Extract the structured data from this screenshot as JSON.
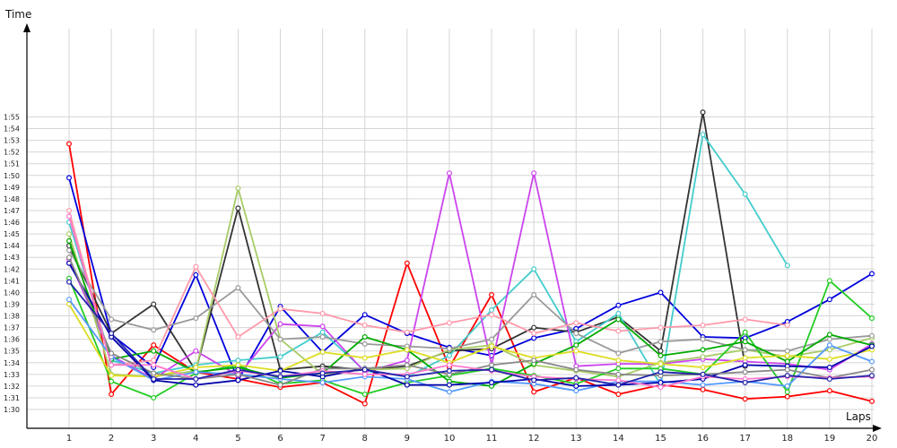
{
  "chart_data": {
    "type": "line",
    "ylabel": "Time",
    "xlabel": "Laps",
    "x": [
      1,
      2,
      3,
      4,
      5,
      6,
      7,
      8,
      9,
      10,
      11,
      12,
      13,
      14,
      15,
      16,
      17,
      18,
      19,
      20
    ],
    "y_ticks": [
      "1:30",
      "1:31",
      "1:32",
      "1:33",
      "1:34",
      "1:35",
      "1:36",
      "1:37",
      "1:38",
      "1:39",
      "1:40",
      "1:41",
      "1:42",
      "1:43",
      "1:44",
      "1:45",
      "1:46",
      "1:47",
      "1:48",
      "1:49",
      "1:50",
      "1:51",
      "1:52",
      "1:53",
      "1:54",
      "1:55"
    ],
    "ylim_seconds": [
      89,
      118
    ],
    "grid": true,
    "legend": "none",
    "series": [
      {
        "color": "#ff0000",
        "values": [
          112.7,
          91.3,
          95.5,
          93.2,
          92.6,
          91.9,
          92.3,
          90.5,
          102.5,
          93.6,
          99.8,
          91.5,
          92.7,
          91.3,
          92.1,
          91.7,
          90.9,
          91.1,
          91.6,
          90.7
        ]
      },
      {
        "color": "#0000dd",
        "values": [
          109.8,
          96.4,
          93.6,
          101.5,
          92.5,
          98.8,
          94.9,
          98.1,
          96.5,
          95.3,
          94.6,
          96.1,
          96.9,
          98.9,
          100.0,
          96.2,
          96.1,
          97.5,
          99.4,
          101.6
        ]
      },
      {
        "color": "#333333",
        "values": [
          104.0,
          96.5,
          99.0,
          93.3,
          107.2,
          93.4,
          93.7,
          93.4,
          93.7,
          95.0,
          95.2,
          97.0,
          96.6,
          97.9,
          95.0,
          115.4,
          93.7,
          null,
          null,
          null
        ]
      },
      {
        "color": "#44cccc",
        "values": [
          106.0,
          94.2,
          93.1,
          93.8,
          94.2,
          94.5,
          96.6,
          93.3,
          92.8,
          94.6,
          98.5,
          102.0,
          95.8,
          98.2,
          92.1,
          113.5,
          108.4,
          102.3,
          null,
          null
        ]
      },
      {
        "color": "#cc44ee",
        "values": [
          102.8,
          94.6,
          92.6,
          95.0,
          92.9,
          97.3,
          97.1,
          93.2,
          94.2,
          110.2,
          93.8,
          110.2,
          93.7,
          93.9,
          93.9,
          94.3,
          94.1,
          93.9,
          93.4,
          95.6
        ]
      },
      {
        "color": "#a8cc66",
        "values": [
          105.0,
          93.0,
          92.8,
          93.3,
          108.9,
          96.0,
          93.0,
          93.4,
          93.5,
          95.1,
          95.5,
          93.8,
          93.3,
          92.8,
          94.0,
          94.5,
          95.1,
          94.5,
          95.1,
          96.1
        ]
      },
      {
        "color": "#999999",
        "values": [
          103.6,
          97.7,
          96.8,
          97.8,
          100.4,
          96.0,
          96.2,
          95.6,
          95.4,
          95.2,
          96.0,
          99.8,
          96.5,
          94.8,
          95.8,
          96.0,
          95.1,
          95.0,
          96.0,
          96.3
        ]
      },
      {
        "color": "#ff99aa",
        "values": [
          107.0,
          93.8,
          94.2,
          102.2,
          96.2,
          98.6,
          98.2,
          97.2,
          96.6,
          97.4,
          98.1,
          96.5,
          97.4,
          96.7,
          97.0,
          97.2,
          97.7,
          97.2,
          null,
          null
        ]
      },
      {
        "color": "#22cc22",
        "values": [
          101.2,
          92.4,
          91.0,
          93.1,
          93.8,
          92.2,
          92.5,
          91.3,
          92.3,
          92.9,
          93.5,
          92.9,
          92.2,
          93.5,
          93.5,
          93.0,
          96.6,
          91.5,
          101.0,
          97.8
        ]
      },
      {
        "color": "#00aa00",
        "values": [
          104.4,
          94.3,
          95.0,
          93.2,
          93.6,
          92.7,
          93.1,
          96.2,
          95.1,
          92.4,
          92.0,
          93.9,
          95.5,
          97.7,
          94.6,
          95.1,
          95.8,
          94.1,
          96.4,
          95.5
        ]
      },
      {
        "color": "#dddd22",
        "values": [
          99.0,
          92.9,
          92.8,
          93.6,
          93.8,
          93.3,
          94.9,
          94.4,
          95.1,
          94.0,
          95.4,
          94.4,
          95.0,
          94.2,
          93.9,
          93.6,
          94.4,
          94.6,
          94.3,
          95.1
        ]
      },
      {
        "color": "#5599ff",
        "values": [
          99.4,
          94.5,
          92.5,
          93.2,
          93.0,
          92.6,
          92.3,
          92.8,
          92.6,
          91.5,
          92.4,
          92.2,
          91.6,
          92.4,
          92.4,
          92.1,
          92.4,
          92.0,
          95.5,
          94.1
        ]
      },
      {
        "color": "#0000aa",
        "values": [
          102.5,
          96.2,
          92.5,
          92.1,
          92.5,
          93.3,
          92.8,
          93.5,
          92.1,
          92.1,
          92.3,
          92.6,
          92.0,
          92.1,
          92.3,
          92.6,
          93.8,
          93.7,
          93.6,
          95.4
        ]
      },
      {
        "color": "#888888",
        "values": [
          103.0,
          94.8,
          93.1,
          92.6,
          93.0,
          92.1,
          93.5,
          93.5,
          93.8,
          93.0,
          93.8,
          94.2,
          93.4,
          93.0,
          92.9,
          93.0,
          93.2,
          93.4,
          92.7,
          93.4
        ]
      },
      {
        "color": "#ff77cc",
        "values": [
          106.5,
          93.8,
          93.8,
          92.6,
          93.3,
          92.8,
          93.3,
          93.0,
          93.0,
          93.8,
          93.3,
          92.8,
          92.6,
          92.5,
          91.9,
          92.8,
          92.6,
          92.8,
          92.7,
          92.8
        ]
      },
      {
        "color": "#2222aa",
        "values": [
          100.9,
          96.5,
          92.6,
          92.6,
          93.4,
          92.8,
          93.1,
          93.4,
          92.8,
          93.3,
          93.4,
          92.5,
          92.7,
          92.1,
          93.2,
          93.0,
          92.3,
          92.9,
          92.6,
          92.9
        ]
      }
    ]
  }
}
